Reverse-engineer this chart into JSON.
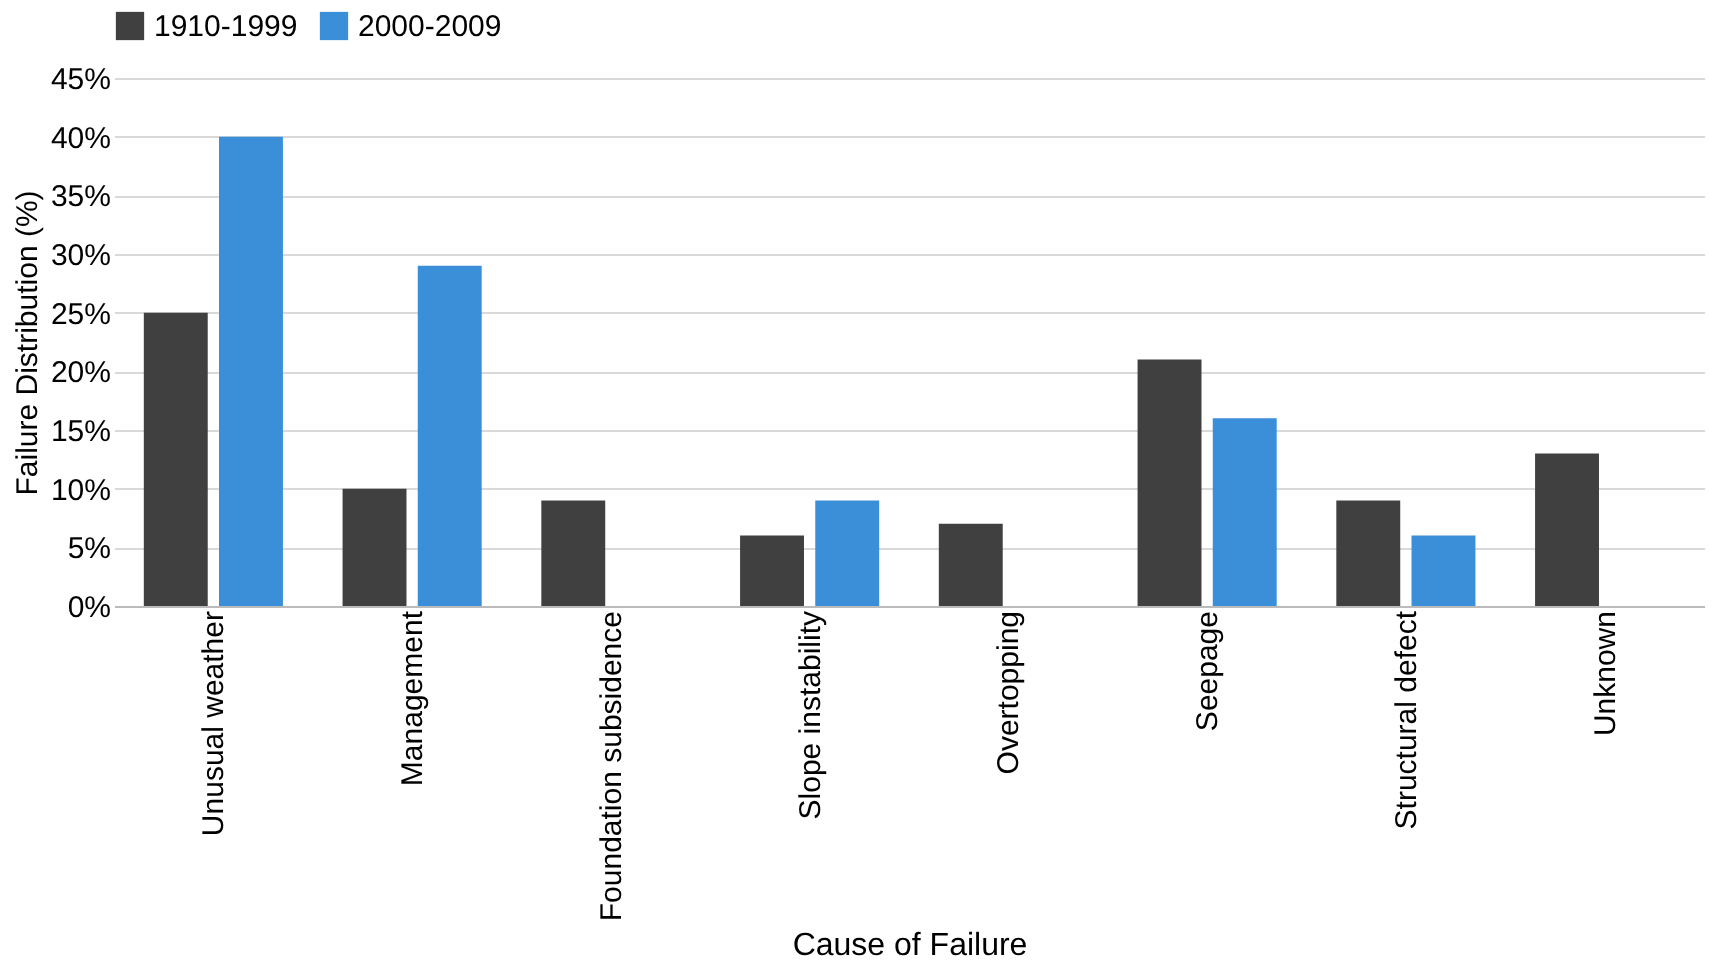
{
  "chart_data": {
    "type": "bar",
    "xlabel": "Cause of Failure",
    "ylabel": "Failure Distribution (%)",
    "categories": [
      "Unusual weather",
      "Management",
      "Foundation subsidence",
      "Slope instability",
      "Overtopping",
      "Seepage",
      "Structural defect",
      "Unknown"
    ],
    "series": [
      {
        "name": "1910-1999",
        "color": "#404040",
        "values": [
          25,
          10,
          9,
          6,
          7,
          21,
          9,
          13
        ]
      },
      {
        "name": "2000-2009",
        "color": "#3a8fd8",
        "values": [
          40,
          29,
          null,
          9,
          null,
          16,
          6,
          null
        ]
      }
    ],
    "ylim": [
      0,
      45
    ],
    "yticks": [
      {
        "value": 0,
        "label": "0%"
      },
      {
        "value": 5,
        "label": "5%"
      },
      {
        "value": 10,
        "label": "10%"
      },
      {
        "value": 15,
        "label": "15%"
      },
      {
        "value": 20,
        "label": "20%"
      },
      {
        "value": 25,
        "label": "25%"
      },
      {
        "value": 30,
        "label": "30%"
      },
      {
        "value": 35,
        "label": "35%"
      },
      {
        "value": 40,
        "label": "40%"
      },
      {
        "value": 45,
        "label": "45%"
      }
    ],
    "grid": "y",
    "legend": "top"
  }
}
